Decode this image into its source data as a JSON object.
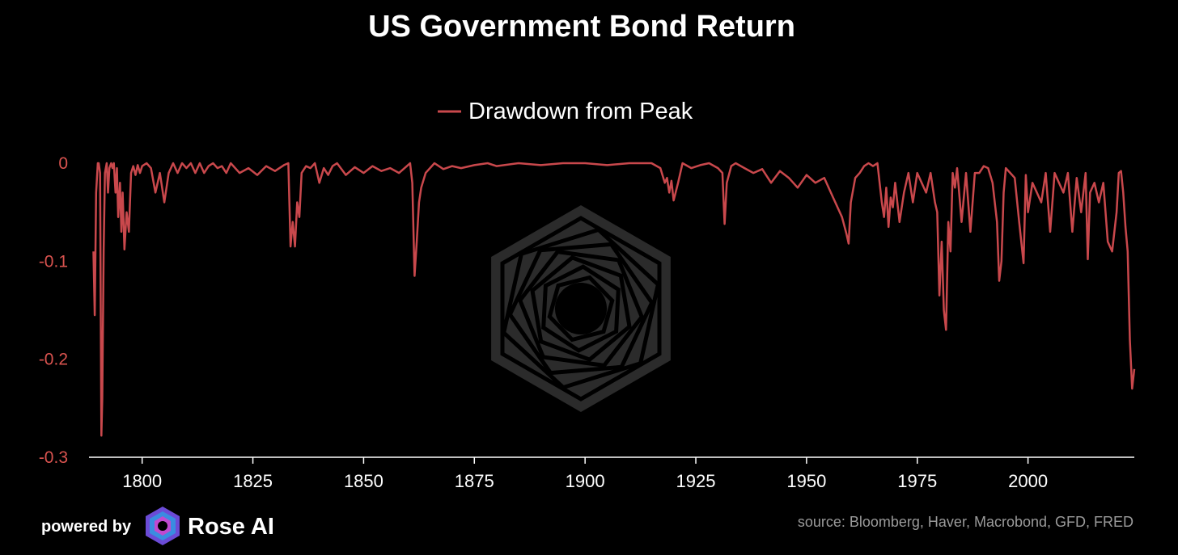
{
  "colors": {
    "background": "#000000",
    "series": "#c9484c",
    "axis_text": "#d9534f",
    "text": "#ffffff",
    "source_text": "#9a9a9a",
    "watermark": "#2b2b2b"
  },
  "chart_data": {
    "type": "line",
    "title": "US Government Bond Return",
    "xlabel": "",
    "ylabel": "",
    "xlim": [
      1788,
      2024
    ],
    "ylim": [
      -0.3,
      0
    ],
    "x_ticks": [
      1800,
      1825,
      1850,
      1875,
      1900,
      1925,
      1950,
      1975,
      2000
    ],
    "x_tick_labels": [
      "1800",
      "1825",
      "1850",
      "1875",
      "1900",
      "1925",
      "1950",
      "1975",
      "2000"
    ],
    "y_ticks": [
      0,
      -0.1,
      -0.2,
      -0.3
    ],
    "y_tick_labels": [
      "0",
      "-0.1",
      "-0.2",
      "-0.3"
    ],
    "grid": false,
    "legend_position": "top-center",
    "series": [
      {
        "name": "Drawdown from Peak",
        "x": [
          1789.0,
          1789.3,
          1789.6,
          1790.0,
          1790.2,
          1790.5,
          1790.8,
          1791.0,
          1791.3,
          1791.6,
          1792.0,
          1792.3,
          1792.6,
          1793.0,
          1793.3,
          1793.6,
          1794.0,
          1794.3,
          1794.6,
          1795.0,
          1795.3,
          1795.6,
          1796.0,
          1796.5,
          1797.0,
          1797.5,
          1798.0,
          1798.5,
          1799.0,
          1799.5,
          1800.0,
          1801.0,
          1802.0,
          1803.0,
          1804.0,
          1805.0,
          1806.0,
          1807.0,
          1808.0,
          1809.0,
          1810.0,
          1811.0,
          1812.0,
          1813.0,
          1814.0,
          1815.0,
          1816.0,
          1817.0,
          1818.0,
          1819.0,
          1820.0,
          1822.0,
          1824.0,
          1826.0,
          1828.0,
          1830.0,
          1832.0,
          1833.0,
          1833.5,
          1834.0,
          1834.5,
          1835.0,
          1835.5,
          1836.0,
          1837.0,
          1838.0,
          1839.0,
          1840.0,
          1841.0,
          1842.0,
          1843.0,
          1844.0,
          1846.0,
          1848.0,
          1850.0,
          1852.0,
          1854.0,
          1856.0,
          1858.0,
          1860.0,
          1860.5,
          1861.0,
          1861.5,
          1862.0,
          1862.5,
          1863.0,
          1864.0,
          1865.0,
          1866.0,
          1868.0,
          1870.0,
          1872.0,
          1875.0,
          1878.0,
          1880.0,
          1885.0,
          1890.0,
          1895.0,
          1900.0,
          1905.0,
          1910.0,
          1915.0,
          1917.0,
          1918.0,
          1918.5,
          1919.0,
          1919.5,
          1920.0,
          1921.0,
          1922.0,
          1924.0,
          1926.0,
          1928.0,
          1930.0,
          1931.0,
          1931.5,
          1932.0,
          1933.0,
          1934.0,
          1936.0,
          1938.0,
          1940.0,
          1942.0,
          1944.0,
          1946.0,
          1948.0,
          1950.0,
          1952.0,
          1954.0,
          1956.0,
          1957.0,
          1958.0,
          1959.0,
          1959.5,
          1960.0,
          1961.0,
          1962.0,
          1963.0,
          1964.0,
          1965.0,
          1966.0,
          1967.0,
          1967.5,
          1968.0,
          1968.5,
          1969.0,
          1969.5,
          1970.0,
          1971.0,
          1972.0,
          1973.0,
          1974.0,
          1975.0,
          1976.0,
          1977.0,
          1978.0,
          1979.0,
          1979.5,
          1980.0,
          1980.5,
          1981.0,
          1981.5,
          1982.0,
          1982.5,
          1983.0,
          1983.5,
          1984.0,
          1985.0,
          1986.0,
          1987.0,
          1988.0,
          1989.0,
          1990.0,
          1991.0,
          1992.0,
          1993.0,
          1993.5,
          1994.0,
          1994.5,
          1995.0,
          1996.0,
          1997.0,
          1998.0,
          1999.0,
          1999.5,
          2000.0,
          2001.0,
          2002.0,
          2003.0,
          2004.0,
          2005.0,
          2006.0,
          2007.0,
          2008.0,
          2009.0,
          2010.0,
          2011.0,
          2012.0,
          2013.0,
          2013.5,
          2014.0,
          2015.0,
          2016.0,
          2017.0,
          2018.0,
          2019.0,
          2020.0,
          2020.5,
          2021.0,
          2021.5,
          2022.0,
          2022.5,
          2023.0,
          2023.5,
          2024.0
        ],
        "values": [
          -0.09,
          -0.155,
          -0.03,
          0.0,
          0.0,
          -0.01,
          -0.278,
          -0.24,
          -0.09,
          -0.01,
          0.0,
          -0.03,
          -0.005,
          0.0,
          -0.005,
          0.0,
          -0.03,
          -0.005,
          -0.055,
          -0.02,
          -0.07,
          -0.03,
          -0.088,
          -0.05,
          -0.07,
          -0.01,
          -0.003,
          -0.012,
          -0.002,
          -0.01,
          -0.003,
          0.0,
          -0.005,
          -0.03,
          -0.01,
          -0.04,
          -0.01,
          0.0,
          -0.01,
          0.0,
          -0.005,
          0.0,
          -0.01,
          0.0,
          -0.01,
          -0.003,
          0.0,
          -0.005,
          -0.003,
          -0.01,
          0.0,
          -0.01,
          -0.005,
          -0.012,
          -0.003,
          -0.008,
          -0.002,
          0.0,
          -0.085,
          -0.06,
          -0.085,
          -0.04,
          -0.055,
          -0.01,
          -0.003,
          -0.005,
          0.0,
          -0.02,
          -0.005,
          -0.012,
          -0.003,
          0.0,
          -0.012,
          -0.004,
          -0.01,
          -0.003,
          -0.008,
          -0.005,
          -0.01,
          -0.002,
          0.0,
          -0.02,
          -0.115,
          -0.08,
          -0.04,
          -0.025,
          -0.01,
          -0.005,
          0.0,
          -0.006,
          -0.003,
          -0.005,
          -0.002,
          0.0,
          -0.003,
          0.0,
          -0.002,
          0.0,
          0.0,
          -0.002,
          0.0,
          0.0,
          -0.005,
          -0.02,
          -0.015,
          -0.03,
          -0.018,
          -0.038,
          -0.02,
          0.0,
          -0.005,
          -0.002,
          0.0,
          -0.005,
          -0.01,
          -0.062,
          -0.02,
          -0.003,
          0.0,
          -0.005,
          -0.01,
          -0.006,
          -0.02,
          -0.008,
          -0.015,
          -0.025,
          -0.012,
          -0.02,
          -0.015,
          -0.035,
          -0.045,
          -0.055,
          -0.072,
          -0.082,
          -0.04,
          -0.015,
          -0.01,
          -0.003,
          0.0,
          -0.003,
          0.0,
          -0.04,
          -0.055,
          -0.025,
          -0.065,
          -0.035,
          -0.045,
          -0.02,
          -0.06,
          -0.03,
          -0.01,
          -0.04,
          -0.01,
          -0.02,
          -0.03,
          -0.01,
          -0.04,
          -0.05,
          -0.135,
          -0.08,
          -0.15,
          -0.17,
          -0.06,
          -0.09,
          -0.01,
          -0.025,
          -0.005,
          -0.06,
          -0.01,
          -0.07,
          -0.01,
          -0.01,
          -0.003,
          -0.005,
          -0.02,
          -0.06,
          -0.12,
          -0.1,
          -0.03,
          -0.005,
          -0.01,
          -0.015,
          -0.06,
          -0.102,
          -0.012,
          -0.05,
          -0.02,
          -0.03,
          -0.04,
          -0.01,
          -0.07,
          -0.01,
          -0.02,
          -0.03,
          -0.01,
          -0.07,
          -0.015,
          -0.05,
          -0.01,
          -0.098,
          -0.03,
          -0.02,
          -0.04,
          -0.02,
          -0.08,
          -0.09,
          -0.05,
          -0.01,
          -0.008,
          -0.03,
          -0.065,
          -0.09,
          -0.18,
          -0.23,
          -0.21
        ]
      }
    ]
  },
  "footer": {
    "powered_by": "powered by",
    "brand_name": "Rose AI",
    "source": "source: Bloomberg, Haver, Macrobond, GFD, FRED"
  },
  "icons": {
    "watermark": "rose-ai-logo-icon",
    "brand": "rose-ai-logo-icon"
  }
}
